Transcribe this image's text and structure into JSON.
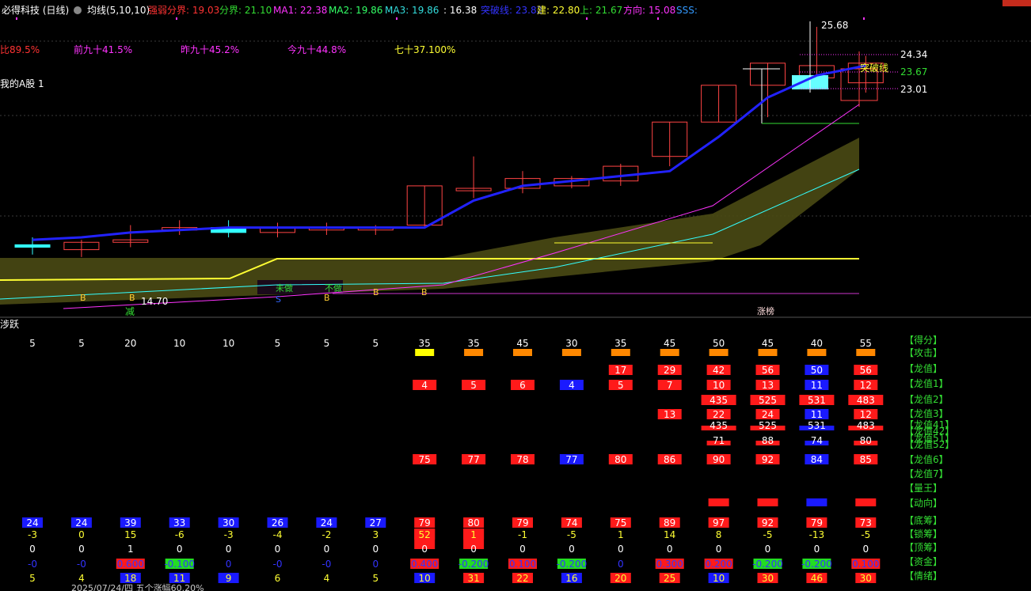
{
  "header": {
    "title": "必得科技 (日线)",
    "ma_label": "均线(5,10,10)",
    "items": [
      {
        "label": "强弱分界: 19.03",
        "color": "#ff3333"
      },
      {
        "label": "分界: 21.10",
        "color": "#33dd33"
      },
      {
        "label": "MA1: 22.38",
        "color": "#ff33ff"
      },
      {
        "label": "MA2: 19.86",
        "color": "#33ff66"
      },
      {
        "label": "MA3: 19.86",
        "color": "#33dddd"
      },
      {
        "label": ": 16.38",
        "color": "#ffffff"
      },
      {
        "label": "突破线: 23.82",
        "color": "#3333ff"
      },
      {
        "label": "建: 22.80",
        "color": "#ffff33"
      },
      {
        "label": "上: 21.67",
        "color": "#33dd33"
      },
      {
        "label": "方向: 15.08",
        "color": "#ff33ff"
      },
      {
        "label": "SSS:",
        "color": "#3399ff"
      }
    ]
  },
  "stats": [
    {
      "label": "比89.5%",
      "color": "#ff3333"
    },
    {
      "label": "前九十41.5%",
      "color": "#ff33ff"
    },
    {
      "label": "昨九十45.2%",
      "color": "#ff33ff"
    },
    {
      "label": "今九十44.8%",
      "color": "#ff33ff"
    },
    {
      "label": "七十37.100%",
      "color": "#ffff33"
    }
  ],
  "subtitle": "我的A股 1",
  "price_labels": {
    "high": "25.68",
    "p1": "24.34",
    "p2": "23.67",
    "p3": "23.01",
    "low": "14.70",
    "breakout": "突破线"
  },
  "chart_marks": {
    "buy": "B",
    "sell": "S",
    "reduce": "减",
    "limit_up": "涨榜",
    "wei_bu": "未做",
    "bu": "不做"
  },
  "indicator_title": "涉跃",
  "chart_data": {
    "type": "table",
    "columns": 18,
    "score": [
      5,
      5,
      20,
      10,
      10,
      5,
      5,
      5,
      35,
      35,
      45,
      30,
      35,
      45,
      50,
      45,
      40,
      55
    ],
    "candles": [
      {
        "o": 16.8,
        "c": 16.7,
        "h": 17.1,
        "l": 16.4
      },
      {
        "o": 16.6,
        "c": 16.9,
        "h": 17.0,
        "l": 16.3
      },
      {
        "o": 16.9,
        "c": 17.0,
        "h": 17.6,
        "l": 16.7
      },
      {
        "o": 17.4,
        "c": 17.5,
        "h": 17.8,
        "l": 17.2
      },
      {
        "o": 17.5,
        "c": 17.3,
        "h": 17.8,
        "l": 17.1
      },
      {
        "o": 17.3,
        "c": 17.5,
        "h": 17.7,
        "l": 17.1
      },
      {
        "o": 17.4,
        "c": 17.5,
        "h": 17.7,
        "l": 17.2
      },
      {
        "o": 17.4,
        "c": 17.5,
        "h": 17.6,
        "l": 17.2
      },
      {
        "o": 17.6,
        "c": 19.2,
        "h": 19.2,
        "l": 17.5
      },
      {
        "o": 19.0,
        "c": 19.1,
        "h": 20.4,
        "l": 18.7
      },
      {
        "o": 19.1,
        "c": 19.5,
        "h": 19.8,
        "l": 18.9
      },
      {
        "o": 19.2,
        "c": 19.5,
        "h": 19.6,
        "l": 19.1
      },
      {
        "o": 19.4,
        "c": 20.0,
        "h": 20.1,
        "l": 19.2
      },
      {
        "o": 20.4,
        "c": 21.8,
        "h": 21.8,
        "l": 20.0
      },
      {
        "o": 21.8,
        "c": 23.3,
        "h": 23.3,
        "l": 21.8
      },
      {
        "o": 23.3,
        "c": 24.2,
        "h": 24.2,
        "l": 22.0
      },
      {
        "o": 23.6,
        "c": 24.1,
        "h": 25.68,
        "l": 23.3
      },
      {
        "o": 23.4,
        "c": 24.2,
        "h": 24.5,
        "l": 23.0
      }
    ],
    "breakout_line": [
      17.0,
      17.1,
      17.3,
      17.4,
      17.5,
      17.5,
      17.5,
      17.5,
      17.5,
      18.6,
      19.2,
      19.4,
      19.6,
      19.8,
      21.2,
      22.8,
      23.7,
      24.1
    ],
    "row_labels": [
      "【得分】",
      "【攻击】",
      "【龙值】",
      "【龙值1】",
      "【龙值2】",
      "【龙值3】",
      "【龙值41】",
      "【龙值42】",
      "【龙值51】",
      "【龙值52】",
      "【龙值6】",
      "【龙值7】",
      "【量王】",
      "【动向】",
      "【底筹】",
      "【锁筹】",
      "【顶筹】",
      "【资金】",
      "【情绪】"
    ],
    "attack_colors": [
      "",
      "",
      "",
      "",
      "",
      "",
      "",
      "",
      "#ffff00",
      "#ff8800",
      "#ff8800",
      "#ff8800",
      "#ff8800",
      "#ff8800",
      "#ff8800",
      "#ff8800",
      "#ff8800",
      "#ff8800"
    ],
    "longzhi": [
      "",
      "",
      "",
      "",
      "",
      "",
      "",
      "",
      "",
      "",
      "",
      "",
      "17",
      "29",
      "42",
      "56",
      "50",
      "56"
    ],
    "longzhi_color": [
      "",
      "",
      "",
      "",
      "",
      "",
      "",
      "",
      "",
      "",
      "",
      "",
      "r",
      "r",
      "r",
      "r",
      "b",
      "r"
    ],
    "longzhi1": [
      "",
      "",
      "",
      "",
      "",
      "",
      "",
      "",
      "4",
      "5",
      "6",
      "4",
      "5",
      "7",
      "10",
      "13",
      "11",
      "12"
    ],
    "longzhi1_color": [
      "",
      "",
      "",
      "",
      "",
      "",
      "",
      "",
      "r",
      "r",
      "r",
      "b",
      "r",
      "r",
      "r",
      "r",
      "b",
      "r"
    ],
    "longzhi2": [
      "",
      "",
      "",
      "",
      "",
      "",
      "",
      "",
      "",
      "",
      "",
      "",
      "",
      "",
      "435",
      "525",
      "531",
      "483"
    ],
    "longzhi3": [
      "",
      "",
      "",
      "",
      "",
      "",
      "",
      "",
      "",
      "",
      "",
      "",
      "",
      "13",
      "22",
      "24",
      "11",
      "12"
    ],
    "longzhi3_color": [
      "",
      "",
      "",
      "",
      "",
      "",
      "",
      "",
      "",
      "",
      "",
      "",
      "",
      "r",
      "r",
      "r",
      "b",
      "r"
    ],
    "longzhi41": [
      "",
      "",
      "",
      "",
      "",
      "",
      "",
      "",
      "",
      "",
      "",
      "",
      "",
      "",
      "435",
      "525",
      "531",
      "483"
    ],
    "longzhi52": [
      "",
      "",
      "",
      "",
      "",
      "",
      "",
      "",
      "",
      "",
      "",
      "",
      "",
      "",
      "71",
      "88",
      "74",
      "80"
    ],
    "longzhi6": [
      "",
      "",
      "",
      "",
      "",
      "",
      "",
      "",
      "75",
      "77",
      "78",
      "77",
      "80",
      "86",
      "90",
      "92",
      "84",
      "85"
    ],
    "longzhi6_color": [
      "",
      "",
      "",
      "",
      "",
      "",
      "",
      "",
      "r",
      "r",
      "r",
      "b",
      "r",
      "r",
      "r",
      "r",
      "b",
      "r"
    ],
    "dongxiang_color": [
      "",
      "",
      "",
      "",
      "",
      "",
      "",
      "",
      "",
      "",
      "",
      "",
      "",
      "",
      "r",
      "r",
      "b",
      "r"
    ],
    "dichou": [
      "24",
      "24",
      "39",
      "33",
      "30",
      "26",
      "24",
      "27",
      "79",
      "80",
      "79",
      "74",
      "75",
      "89",
      "97",
      "92",
      "79",
      "73"
    ],
    "dichou_color": [
      "b",
      "b",
      "b",
      "b",
      "b",
      "b",
      "b",
      "b",
      "r",
      "r",
      "r",
      "r",
      "r",
      "r",
      "r",
      "r",
      "r",
      "r"
    ],
    "suochou": [
      "-3",
      "0",
      "15",
      "-6",
      "-3",
      "-4",
      "-2",
      "3",
      "52",
      "1",
      "-1",
      "-5",
      "1",
      "14",
      "8",
      "-5",
      "-13",
      "-5"
    ],
    "dingchou": [
      "0",
      "0",
      "1",
      "0",
      "0",
      "0",
      "0",
      "0",
      "0",
      "0",
      "0",
      "0",
      "0",
      "0",
      "0",
      "0",
      "0",
      "0"
    ],
    "zijin": [
      "-0",
      "-0",
      "0.600",
      "-0.100",
      "0",
      "-0",
      "-0",
      "0",
      "0.400",
      "-0.200",
      "0.100",
      "-0.200",
      "0",
      "0.300",
      "0.200",
      "-0.200",
      "-0.200",
      "0.100"
    ],
    "zijin_color": [
      "",
      "",
      "r",
      "g",
      "",
      "",
      "",
      "",
      "r",
      "g",
      "r",
      "g",
      "",
      "r",
      "r",
      "g",
      "g",
      "r"
    ],
    "qingxu": [
      "5",
      "4",
      "18",
      "11",
      "9",
      "6",
      "4",
      "5",
      "10",
      "31",
      "22",
      "16",
      "20",
      "25",
      "10",
      "30",
      "46",
      "30"
    ],
    "qingxu_color": [
      "",
      "",
      "b",
      "b",
      "b",
      "",
      "",
      "",
      "b",
      "r",
      "r",
      "b",
      "r",
      "r",
      "b",
      "r",
      "r",
      "r"
    ]
  },
  "footer_text": "2025/07/24/四  五个涨幅60.20%"
}
